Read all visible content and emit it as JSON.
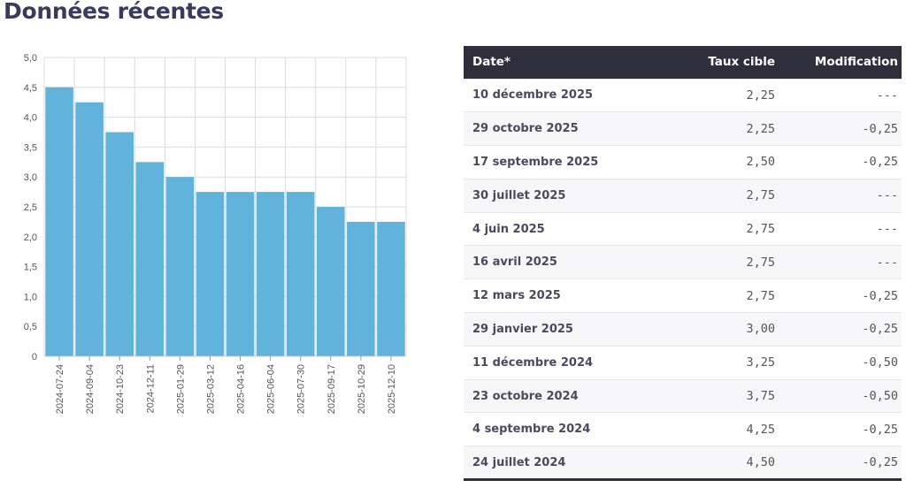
{
  "page": {
    "heading": "Données récentes"
  },
  "chart_data": {
    "type": "bar",
    "categories": [
      "2024-07-24",
      "2024-09-04",
      "2024-10-23",
      "2024-12-11",
      "2025-01-29",
      "2025-03-12",
      "2025-04-16",
      "2025-06-04",
      "2025-07-30",
      "2025-09-17",
      "2025-10-29",
      "2025-12-10"
    ],
    "values": [
      4.5,
      4.25,
      3.75,
      3.25,
      3.0,
      2.75,
      2.75,
      2.75,
      2.75,
      2.5,
      2.25,
      2.25
    ],
    "yticks": [
      "0",
      "0,5",
      "1,0",
      "1,5",
      "2,0",
      "2,5",
      "3,0",
      "3,5",
      "4,0",
      "4,5",
      "5,0"
    ],
    "ylim": [
      0,
      5
    ],
    "title": "",
    "xlabel": "",
    "ylabel": "",
    "grid": true,
    "bar_color": "#62b3dc",
    "grid_color": "#dcdcdc"
  },
  "table": {
    "headers": {
      "date": "Date*",
      "rate": "Taux cible",
      "change": "Modification"
    },
    "rows": [
      {
        "date": "10 décembre 2025",
        "rate": "2,25",
        "change": "---"
      },
      {
        "date": "29 octobre 2025",
        "rate": "2,25",
        "change": "-0,25"
      },
      {
        "date": "17 septembre 2025",
        "rate": "2,50",
        "change": "-0,25"
      },
      {
        "date": "30 juillet 2025",
        "rate": "2,75",
        "change": "---"
      },
      {
        "date": "4 juin 2025",
        "rate": "2,75",
        "change": "---"
      },
      {
        "date": "16 avril 2025",
        "rate": "2,75",
        "change": "---"
      },
      {
        "date": "12 mars 2025",
        "rate": "2,75",
        "change": "-0,25"
      },
      {
        "date": "29 janvier 2025",
        "rate": "3,00",
        "change": "-0,25"
      },
      {
        "date": "11 décembre 2024",
        "rate": "3,25",
        "change": "-0,50"
      },
      {
        "date": "23 octobre 2024",
        "rate": "3,75",
        "change": "-0,50"
      },
      {
        "date": "4 septembre 2024",
        "rate": "4,25",
        "change": "-0,25"
      },
      {
        "date": "24 juillet 2024",
        "rate": "4,50",
        "change": "-0,25"
      }
    ]
  }
}
